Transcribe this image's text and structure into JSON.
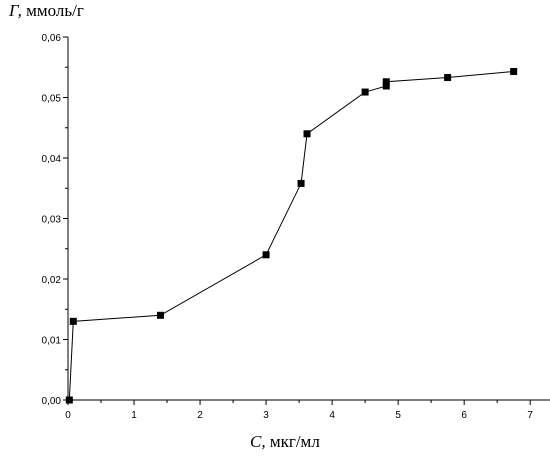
{
  "chart_data": {
    "type": "scatter",
    "ylabel": {
      "symbol": "Г,",
      "unit": "ммоль/г"
    },
    "xlabel": {
      "symbol": "С,",
      "unit": "мкг/мл"
    },
    "xlim": [
      0,
      7.3
    ],
    "ylim": [
      0,
      0.06
    ],
    "x_ticks": [
      {
        "value": 0,
        "label": "0"
      },
      {
        "value": 1,
        "label": "1"
      },
      {
        "value": 2,
        "label": "2"
      },
      {
        "value": 3,
        "label": "3"
      },
      {
        "value": 4,
        "label": "4"
      },
      {
        "value": 5,
        "label": "5"
      },
      {
        "value": 6,
        "label": "6"
      },
      {
        "value": 7,
        "label": "7"
      }
    ],
    "y_ticks": [
      {
        "value": 0,
        "label": "0,00"
      },
      {
        "value": 0.01,
        "label": "0,01"
      },
      {
        "value": 0.02,
        "label": "0,02"
      },
      {
        "value": 0.03,
        "label": "0,03"
      },
      {
        "value": 0.04,
        "label": "0,04"
      },
      {
        "value": 0.05,
        "label": "0,05"
      },
      {
        "value": 0.06,
        "label": "0,06"
      }
    ],
    "grid": false,
    "series": [
      {
        "points": [
          {
            "x": 0.02,
            "y": 0.0
          },
          {
            "x": 0.08,
            "y": 0.013
          },
          {
            "x": 1.4,
            "y": 0.014
          },
          {
            "x": 3.0,
            "y": 0.024
          },
          {
            "x": 3.53,
            "y": 0.0358
          },
          {
            "x": 3.62,
            "y": 0.044
          },
          {
            "x": 4.5,
            "y": 0.0509
          },
          {
            "x": 4.82,
            "y": 0.0519
          },
          {
            "x": 4.82,
            "y": 0.0526
          },
          {
            "x": 5.75,
            "y": 0.0533
          },
          {
            "x": 6.75,
            "y": 0.0543
          }
        ]
      }
    ]
  }
}
